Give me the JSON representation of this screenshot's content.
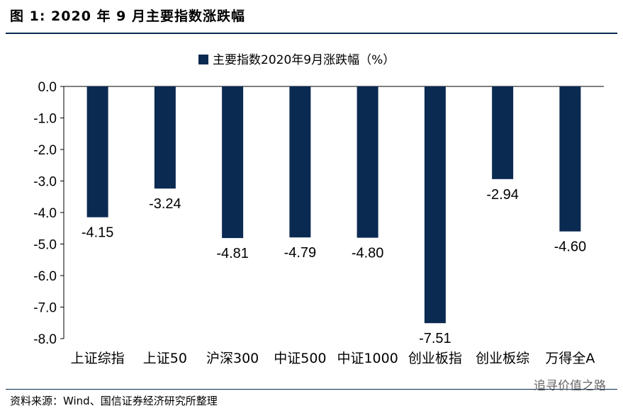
{
  "figure": {
    "title": "图 1: 2020 年 9 月主要指数涨跌幅",
    "source": "资料来源：Wind、国信证券经济研究所整理",
    "watermark": "追寻价值之路"
  },
  "colors": {
    "bar": "#0b2a52",
    "rule": "#0b2a52",
    "axis": "#000000"
  },
  "chart_data": {
    "type": "bar",
    "title": "",
    "xlabel": "",
    "ylabel": "",
    "legend": "top-center",
    "grid": false,
    "ylim": [
      -8.0,
      0.0
    ],
    "yticks": [
      "0.0",
      "-1.0",
      "-2.0",
      "-3.0",
      "-4.0",
      "-5.0",
      "-6.0",
      "-7.0",
      "-8.0"
    ],
    "categories": [
      "上证综指",
      "上证50",
      "沪深300",
      "中证500",
      "中证1000",
      "创业板指",
      "创业板综",
      "万得全A"
    ],
    "series": [
      {
        "name": "主要指数2020年9月涨跌幅（%）",
        "values": [
          -4.15,
          -3.24,
          -4.81,
          -4.79,
          -4.8,
          -7.51,
          -2.94,
          -4.6
        ],
        "labels": [
          "-4.15",
          "-3.24",
          "-4.81",
          "-4.79",
          "-4.80",
          "-7.51",
          "-2.94",
          "-4.60"
        ]
      }
    ]
  }
}
